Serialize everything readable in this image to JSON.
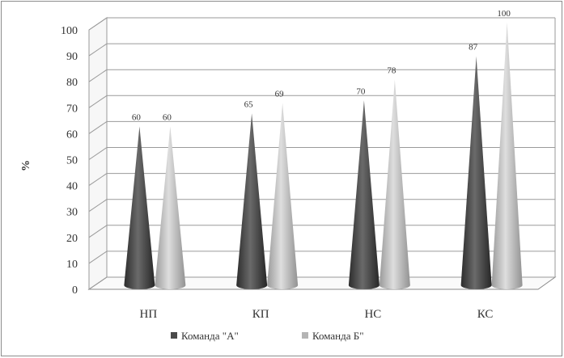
{
  "chart_data": {
    "type": "bar",
    "style": "3d-cone",
    "categories": [
      "НП",
      "КП",
      "НС",
      "КС"
    ],
    "series": [
      {
        "name": "Команда \"А\"",
        "values": [
          60,
          65,
          70,
          87
        ],
        "color": "#4a4a4a"
      },
      {
        "name": "Команда Б\"",
        "values": [
          60,
          69,
          78,
          100
        ],
        "color": "#b4b4b4"
      }
    ],
    "title": "",
    "xlabel": "",
    "ylabel": "%",
    "ylim": [
      0,
      100
    ],
    "yticks": [
      "0",
      "10",
      "20",
      "30",
      "40",
      "50",
      "60",
      "70",
      "80",
      "90",
      "100"
    ],
    "grid": true,
    "legend": "bottom",
    "data_labels": true
  }
}
